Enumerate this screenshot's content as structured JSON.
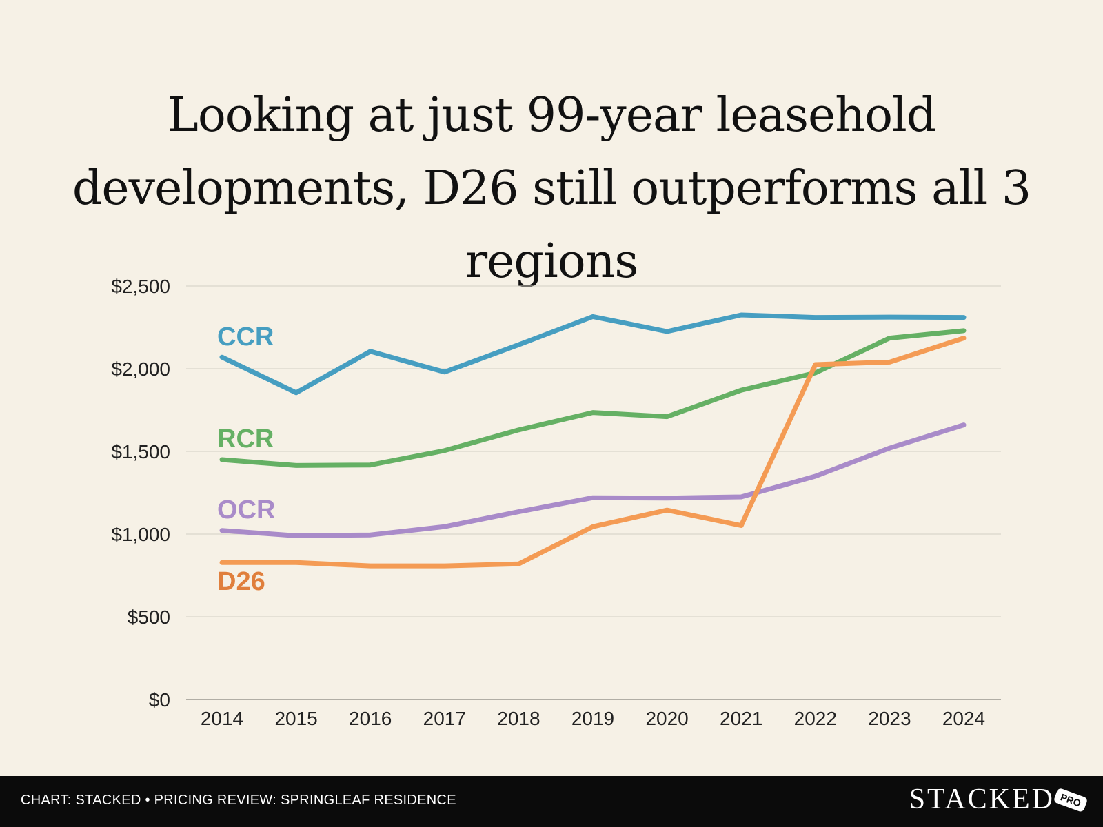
{
  "chart_data": {
    "type": "line",
    "title": "Looking at just 99-year leasehold developments, D26 still outperforms all 3 regions",
    "xlabel": "",
    "ylabel": "",
    "x": [
      "2014",
      "2015",
      "2016",
      "2017",
      "2018",
      "2019",
      "2020",
      "2021",
      "2022",
      "2023",
      "2024"
    ],
    "ylim": [
      0,
      2500
    ],
    "yticks": [
      0,
      500,
      1000,
      1500,
      2000,
      2500
    ],
    "ytick_labels": [
      "$0",
      "$500",
      "$1,000",
      "$1,500",
      "$2,000",
      "$2,500"
    ],
    "grid": true,
    "series": [
      {
        "name": "CCR",
        "color": "#469ec1",
        "values": [
          2070,
          1855,
          2105,
          1980,
          2145,
          2315,
          2225,
          2325,
          2310,
          2312,
          2310
        ]
      },
      {
        "name": "RCR",
        "color": "#65b064",
        "values": [
          1450,
          1415,
          1418,
          1505,
          1630,
          1735,
          1710,
          1870,
          1975,
          2185,
          2230
        ]
      },
      {
        "name": "OCR",
        "color": "#a98bc9",
        "values": [
          1022,
          990,
          995,
          1045,
          1135,
          1220,
          1218,
          1225,
          1350,
          1520,
          1660
        ]
      },
      {
        "name": "D26",
        "color": "#f49b54",
        "label_color": "#e07f3c",
        "values": [
          828,
          828,
          808,
          808,
          820,
          1045,
          1145,
          1052,
          2025,
          2040,
          2185
        ]
      }
    ]
  },
  "footer": {
    "credit": "CHART: STACKED • PRICING REVIEW: SPRINGLEAF RESIDENCE",
    "brand": "STACKED",
    "badge": "PRO"
  }
}
